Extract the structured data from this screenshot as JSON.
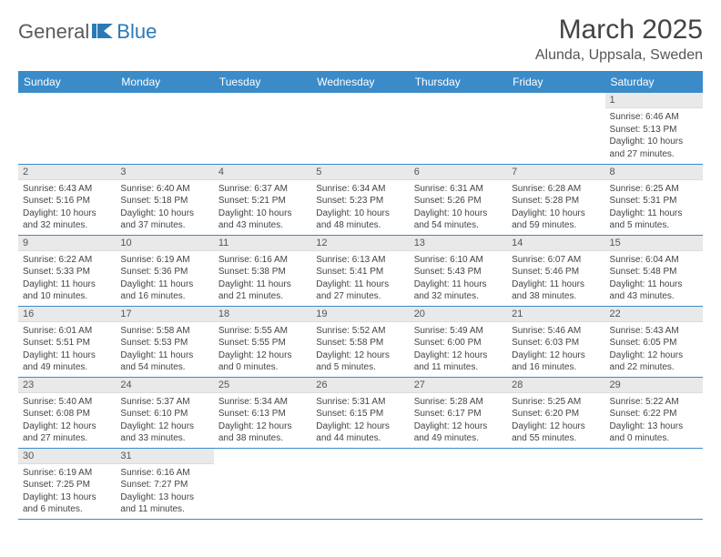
{
  "logo": {
    "part1": "General",
    "part2": "Blue"
  },
  "title": "March 2025",
  "location": "Alunda, Uppsala, Sweden",
  "colors": {
    "header_bg": "#3b8bc9",
    "header_text": "#ffffff",
    "daynum_bg": "#e9e9e9",
    "row_border": "#3b8bc9",
    "text": "#444444",
    "logo_gray": "#5a5a5a",
    "logo_blue": "#2a7ab8"
  },
  "weekdays": [
    "Sunday",
    "Monday",
    "Tuesday",
    "Wednesday",
    "Thursday",
    "Friday",
    "Saturday"
  ],
  "weeks": [
    [
      null,
      null,
      null,
      null,
      null,
      null,
      {
        "n": "1",
        "sr": "Sunrise: 6:46 AM",
        "ss": "Sunset: 5:13 PM",
        "dl1": "Daylight: 10 hours",
        "dl2": "and 27 minutes."
      }
    ],
    [
      {
        "n": "2",
        "sr": "Sunrise: 6:43 AM",
        "ss": "Sunset: 5:16 PM",
        "dl1": "Daylight: 10 hours",
        "dl2": "and 32 minutes."
      },
      {
        "n": "3",
        "sr": "Sunrise: 6:40 AM",
        "ss": "Sunset: 5:18 PM",
        "dl1": "Daylight: 10 hours",
        "dl2": "and 37 minutes."
      },
      {
        "n": "4",
        "sr": "Sunrise: 6:37 AM",
        "ss": "Sunset: 5:21 PM",
        "dl1": "Daylight: 10 hours",
        "dl2": "and 43 minutes."
      },
      {
        "n": "5",
        "sr": "Sunrise: 6:34 AM",
        "ss": "Sunset: 5:23 PM",
        "dl1": "Daylight: 10 hours",
        "dl2": "and 48 minutes."
      },
      {
        "n": "6",
        "sr": "Sunrise: 6:31 AM",
        "ss": "Sunset: 5:26 PM",
        "dl1": "Daylight: 10 hours",
        "dl2": "and 54 minutes."
      },
      {
        "n": "7",
        "sr": "Sunrise: 6:28 AM",
        "ss": "Sunset: 5:28 PM",
        "dl1": "Daylight: 10 hours",
        "dl2": "and 59 minutes."
      },
      {
        "n": "8",
        "sr": "Sunrise: 6:25 AM",
        "ss": "Sunset: 5:31 PM",
        "dl1": "Daylight: 11 hours",
        "dl2": "and 5 minutes."
      }
    ],
    [
      {
        "n": "9",
        "sr": "Sunrise: 6:22 AM",
        "ss": "Sunset: 5:33 PM",
        "dl1": "Daylight: 11 hours",
        "dl2": "and 10 minutes."
      },
      {
        "n": "10",
        "sr": "Sunrise: 6:19 AM",
        "ss": "Sunset: 5:36 PM",
        "dl1": "Daylight: 11 hours",
        "dl2": "and 16 minutes."
      },
      {
        "n": "11",
        "sr": "Sunrise: 6:16 AM",
        "ss": "Sunset: 5:38 PM",
        "dl1": "Daylight: 11 hours",
        "dl2": "and 21 minutes."
      },
      {
        "n": "12",
        "sr": "Sunrise: 6:13 AM",
        "ss": "Sunset: 5:41 PM",
        "dl1": "Daylight: 11 hours",
        "dl2": "and 27 minutes."
      },
      {
        "n": "13",
        "sr": "Sunrise: 6:10 AM",
        "ss": "Sunset: 5:43 PM",
        "dl1": "Daylight: 11 hours",
        "dl2": "and 32 minutes."
      },
      {
        "n": "14",
        "sr": "Sunrise: 6:07 AM",
        "ss": "Sunset: 5:46 PM",
        "dl1": "Daylight: 11 hours",
        "dl2": "and 38 minutes."
      },
      {
        "n": "15",
        "sr": "Sunrise: 6:04 AM",
        "ss": "Sunset: 5:48 PM",
        "dl1": "Daylight: 11 hours",
        "dl2": "and 43 minutes."
      }
    ],
    [
      {
        "n": "16",
        "sr": "Sunrise: 6:01 AM",
        "ss": "Sunset: 5:51 PM",
        "dl1": "Daylight: 11 hours",
        "dl2": "and 49 minutes."
      },
      {
        "n": "17",
        "sr": "Sunrise: 5:58 AM",
        "ss": "Sunset: 5:53 PM",
        "dl1": "Daylight: 11 hours",
        "dl2": "and 54 minutes."
      },
      {
        "n": "18",
        "sr": "Sunrise: 5:55 AM",
        "ss": "Sunset: 5:55 PM",
        "dl1": "Daylight: 12 hours",
        "dl2": "and 0 minutes."
      },
      {
        "n": "19",
        "sr": "Sunrise: 5:52 AM",
        "ss": "Sunset: 5:58 PM",
        "dl1": "Daylight: 12 hours",
        "dl2": "and 5 minutes."
      },
      {
        "n": "20",
        "sr": "Sunrise: 5:49 AM",
        "ss": "Sunset: 6:00 PM",
        "dl1": "Daylight: 12 hours",
        "dl2": "and 11 minutes."
      },
      {
        "n": "21",
        "sr": "Sunrise: 5:46 AM",
        "ss": "Sunset: 6:03 PM",
        "dl1": "Daylight: 12 hours",
        "dl2": "and 16 minutes."
      },
      {
        "n": "22",
        "sr": "Sunrise: 5:43 AM",
        "ss": "Sunset: 6:05 PM",
        "dl1": "Daylight: 12 hours",
        "dl2": "and 22 minutes."
      }
    ],
    [
      {
        "n": "23",
        "sr": "Sunrise: 5:40 AM",
        "ss": "Sunset: 6:08 PM",
        "dl1": "Daylight: 12 hours",
        "dl2": "and 27 minutes."
      },
      {
        "n": "24",
        "sr": "Sunrise: 5:37 AM",
        "ss": "Sunset: 6:10 PM",
        "dl1": "Daylight: 12 hours",
        "dl2": "and 33 minutes."
      },
      {
        "n": "25",
        "sr": "Sunrise: 5:34 AM",
        "ss": "Sunset: 6:13 PM",
        "dl1": "Daylight: 12 hours",
        "dl2": "and 38 minutes."
      },
      {
        "n": "26",
        "sr": "Sunrise: 5:31 AM",
        "ss": "Sunset: 6:15 PM",
        "dl1": "Daylight: 12 hours",
        "dl2": "and 44 minutes."
      },
      {
        "n": "27",
        "sr": "Sunrise: 5:28 AM",
        "ss": "Sunset: 6:17 PM",
        "dl1": "Daylight: 12 hours",
        "dl2": "and 49 minutes."
      },
      {
        "n": "28",
        "sr": "Sunrise: 5:25 AM",
        "ss": "Sunset: 6:20 PM",
        "dl1": "Daylight: 12 hours",
        "dl2": "and 55 minutes."
      },
      {
        "n": "29",
        "sr": "Sunrise: 5:22 AM",
        "ss": "Sunset: 6:22 PM",
        "dl1": "Daylight: 13 hours",
        "dl2": "and 0 minutes."
      }
    ],
    [
      {
        "n": "30",
        "sr": "Sunrise: 6:19 AM",
        "ss": "Sunset: 7:25 PM",
        "dl1": "Daylight: 13 hours",
        "dl2": "and 6 minutes."
      },
      {
        "n": "31",
        "sr": "Sunrise: 6:16 AM",
        "ss": "Sunset: 7:27 PM",
        "dl1": "Daylight: 13 hours",
        "dl2": "and 11 minutes."
      },
      null,
      null,
      null,
      null,
      null
    ]
  ]
}
